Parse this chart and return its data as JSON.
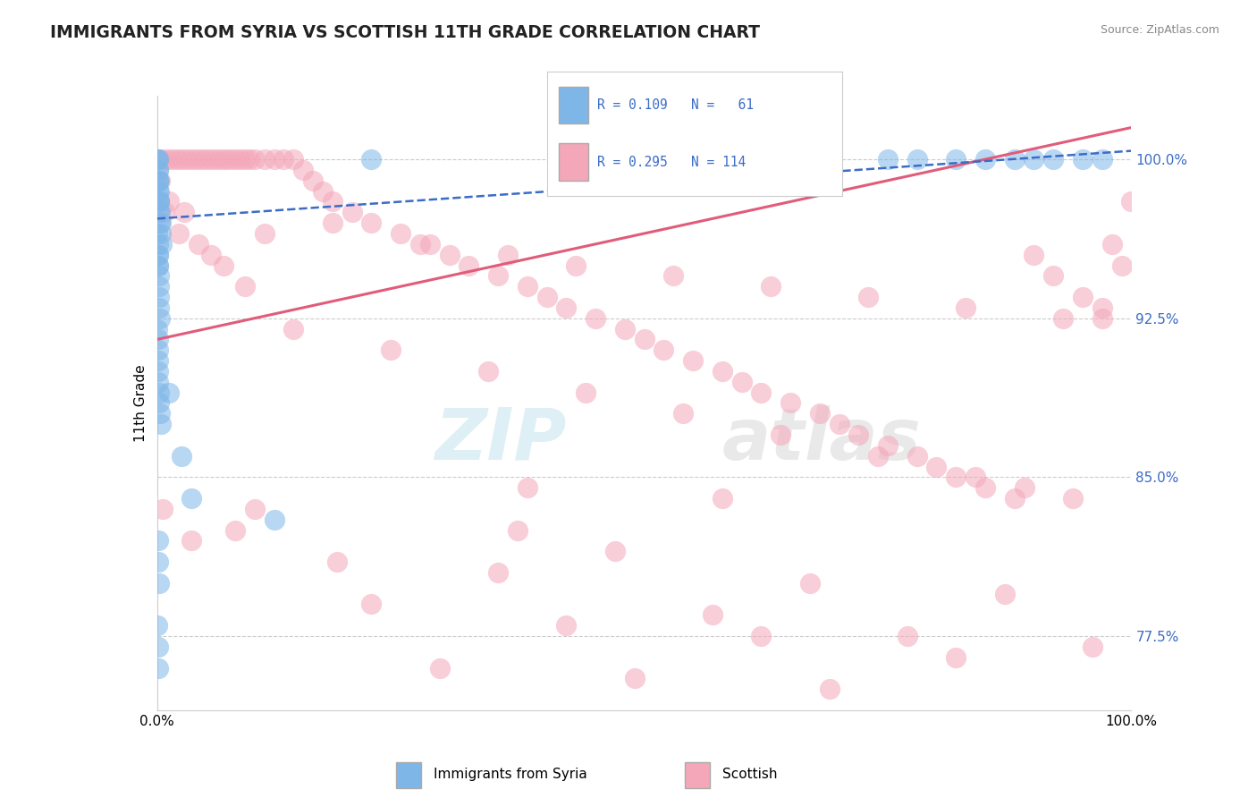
{
  "title": "IMMIGRANTS FROM SYRIA VS SCOTTISH 11TH GRADE CORRELATION CHART",
  "source_text": "Source: ZipAtlas.com",
  "ylabel": "11th Grade",
  "right_yticks": [
    77.5,
    85.0,
    92.5,
    100.0
  ],
  "right_yticklabels": [
    "77.5%",
    "85.0%",
    "92.5%",
    "100.0%"
  ],
  "xlim": [
    0.0,
    100.0
  ],
  "ylim": [
    74.0,
    103.0
  ],
  "legend_label_blue": "Immigrants from Syria",
  "legend_label_pink": "Scottish",
  "blue_color": "#7EB6E8",
  "pink_color": "#F4A7B9",
  "blue_line_color": "#3B6CC7",
  "pink_line_color": "#E05C7A",
  "watermark_zip": "ZIP",
  "watermark_atlas": "atlas",
  "blue_scatter_x": [
    0.05,
    0.08,
    0.1,
    0.1,
    0.1,
    0.12,
    0.15,
    0.15,
    0.18,
    0.2,
    0.2,
    0.22,
    0.25,
    0.25,
    0.3,
    0.3,
    0.35,
    0.4,
    0.5,
    0.05,
    0.08,
    0.1,
    0.12,
    0.15,
    0.15,
    0.18,
    0.2,
    0.22,
    0.25,
    0.3,
    0.05,
    0.08,
    0.1,
    0.1,
    0.12,
    0.15,
    0.2,
    0.25,
    0.3,
    0.35,
    1.2,
    3.5,
    12.0,
    2.5,
    0.08,
    0.12,
    0.18,
    0.05,
    0.1,
    0.15,
    22.0,
    55.0,
    75.0,
    85.0,
    90.0,
    95.0,
    78.0,
    82.0,
    88.0,
    92.0,
    97.0
  ],
  "blue_scatter_y": [
    100.0,
    100.0,
    100.0,
    99.5,
    99.0,
    99.5,
    99.0,
    98.5,
    98.0,
    99.0,
    98.5,
    98.0,
    97.5,
    98.0,
    97.5,
    97.0,
    97.0,
    96.5,
    96.0,
    96.5,
    96.0,
    95.5,
    95.0,
    95.5,
    95.0,
    94.5,
    94.0,
    93.5,
    93.0,
    92.5,
    92.0,
    91.5,
    91.0,
    90.5,
    90.0,
    89.5,
    89.0,
    88.5,
    88.0,
    87.5,
    89.0,
    84.0,
    83.0,
    86.0,
    82.0,
    81.0,
    80.0,
    78.0,
    77.0,
    76.0,
    100.0,
    100.0,
    100.0,
    100.0,
    100.0,
    100.0,
    100.0,
    100.0,
    100.0,
    100.0,
    100.0
  ],
  "pink_scatter_x": [
    0.5,
    1.0,
    1.5,
    2.0,
    2.5,
    3.0,
    3.5,
    4.0,
    4.5,
    5.0,
    5.5,
    6.0,
    6.5,
    7.0,
    7.5,
    8.0,
    8.5,
    9.0,
    9.5,
    10.0,
    11.0,
    12.0,
    13.0,
    14.0,
    15.0,
    16.0,
    17.0,
    18.0,
    20.0,
    22.0,
    25.0,
    28.0,
    30.0,
    32.0,
    35.0,
    38.0,
    40.0,
    42.0,
    45.0,
    48.0,
    50.0,
    52.0,
    55.0,
    58.0,
    60.0,
    62.0,
    65.0,
    68.0,
    70.0,
    72.0,
    75.0,
    78.0,
    80.0,
    82.0,
    85.0,
    88.0,
    90.0,
    92.0,
    95.0,
    97.0,
    98.0,
    99.0,
    100.0,
    0.3,
    1.2,
    2.8,
    4.2,
    6.8,
    11.0,
    18.0,
    27.0,
    36.0,
    43.0,
    53.0,
    63.0,
    73.0,
    83.0,
    93.0,
    0.8,
    2.2,
    5.5,
    9.0,
    14.0,
    24.0,
    34.0,
    44.0,
    54.0,
    64.0,
    74.0,
    84.0,
    94.0,
    0.6,
    3.5,
    8.0,
    18.5,
    35.0,
    22.0,
    42.0,
    62.0,
    82.0,
    96.0,
    29.0,
    49.0,
    69.0,
    89.0,
    10.0,
    37.0,
    47.0,
    67.0,
    87.0,
    57.0,
    77.0,
    97.0,
    38.0,
    58.0
  ],
  "pink_scatter_y": [
    100.0,
    100.0,
    100.0,
    100.0,
    100.0,
    100.0,
    100.0,
    100.0,
    100.0,
    100.0,
    100.0,
    100.0,
    100.0,
    100.0,
    100.0,
    100.0,
    100.0,
    100.0,
    100.0,
    100.0,
    100.0,
    100.0,
    100.0,
    100.0,
    99.5,
    99.0,
    98.5,
    98.0,
    97.5,
    97.0,
    96.5,
    96.0,
    95.5,
    95.0,
    94.5,
    94.0,
    93.5,
    93.0,
    92.5,
    92.0,
    91.5,
    91.0,
    90.5,
    90.0,
    89.5,
    89.0,
    88.5,
    88.0,
    87.5,
    87.0,
    86.5,
    86.0,
    85.5,
    85.0,
    84.5,
    84.0,
    95.5,
    94.5,
    93.5,
    92.5,
    96.0,
    95.0,
    98.0,
    99.0,
    98.0,
    97.5,
    96.0,
    95.0,
    96.5,
    97.0,
    96.0,
    95.5,
    95.0,
    94.5,
    94.0,
    93.5,
    93.0,
    92.5,
    97.5,
    96.5,
    95.5,
    94.0,
    92.0,
    91.0,
    90.0,
    89.0,
    88.0,
    87.0,
    86.0,
    85.0,
    84.0,
    83.5,
    82.0,
    82.5,
    81.0,
    80.5,
    79.0,
    78.0,
    77.5,
    76.5,
    77.0,
    76.0,
    75.5,
    75.0,
    84.5,
    83.5,
    82.5,
    81.5,
    80.0,
    79.5,
    78.5,
    77.5,
    93.0,
    84.5,
    84.0
  ],
  "blue_trend_x": [
    0.0,
    100.0
  ],
  "blue_trend_y": [
    97.2,
    100.4
  ],
  "pink_trend_x": [
    0.0,
    100.0
  ],
  "pink_trend_y": [
    91.5,
    101.5
  ]
}
